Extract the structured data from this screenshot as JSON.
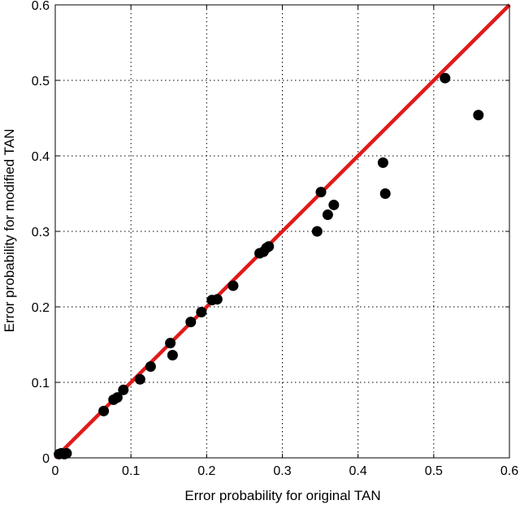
{
  "chart_data": {
    "type": "scatter",
    "title": "",
    "xlabel": "Error probability for original TAN",
    "ylabel": "Error probability for modified TAN",
    "xlim": [
      0,
      0.6
    ],
    "ylim": [
      0,
      0.6
    ],
    "xticks": [
      0,
      0.1,
      0.2,
      0.3,
      0.4,
      0.5,
      0.6
    ],
    "yticks": [
      0,
      0.1,
      0.2,
      0.3,
      0.4,
      0.5,
      0.6
    ],
    "xtick_labels": [
      "0",
      "0.1",
      "0.2",
      "0.3",
      "0.4",
      "0.5",
      "0.6"
    ],
    "ytick_labels": [
      "0",
      "0.1",
      "0.2",
      "0.3",
      "0.4",
      "0.5",
      "0.6"
    ],
    "grid": true,
    "grid_style": "dotted",
    "point_color": "#000000",
    "reference_line": {
      "from": [
        0,
        0
      ],
      "to": [
        0.6,
        0.6
      ],
      "color": "#e11a1a"
    },
    "series": [
      {
        "points": [
          {
            "x": 0.005,
            "y": 0.005
          },
          {
            "x": 0.008,
            "y": 0.006
          },
          {
            "x": 0.012,
            "y": 0.005
          },
          {
            "x": 0.015,
            "y": 0.006
          },
          {
            "x": 0.064,
            "y": 0.062
          },
          {
            "x": 0.077,
            "y": 0.077
          },
          {
            "x": 0.082,
            "y": 0.08
          },
          {
            "x": 0.09,
            "y": 0.09
          },
          {
            "x": 0.112,
            "y": 0.104
          },
          {
            "x": 0.126,
            "y": 0.121
          },
          {
            "x": 0.152,
            "y": 0.152
          },
          {
            "x": 0.155,
            "y": 0.136
          },
          {
            "x": 0.179,
            "y": 0.18
          },
          {
            "x": 0.193,
            "y": 0.193
          },
          {
            "x": 0.207,
            "y": 0.209
          },
          {
            "x": 0.214,
            "y": 0.21
          },
          {
            "x": 0.235,
            "y": 0.228
          },
          {
            "x": 0.27,
            "y": 0.271
          },
          {
            "x": 0.275,
            "y": 0.273
          },
          {
            "x": 0.279,
            "y": 0.278
          },
          {
            "x": 0.282,
            "y": 0.28
          },
          {
            "x": 0.346,
            "y": 0.3
          },
          {
            "x": 0.351,
            "y": 0.352
          },
          {
            "x": 0.36,
            "y": 0.322
          },
          {
            "x": 0.368,
            "y": 0.335
          },
          {
            "x": 0.433,
            "y": 0.391
          },
          {
            "x": 0.436,
            "y": 0.35
          },
          {
            "x": 0.515,
            "y": 0.503
          },
          {
            "x": 0.559,
            "y": 0.454
          }
        ]
      }
    ]
  }
}
